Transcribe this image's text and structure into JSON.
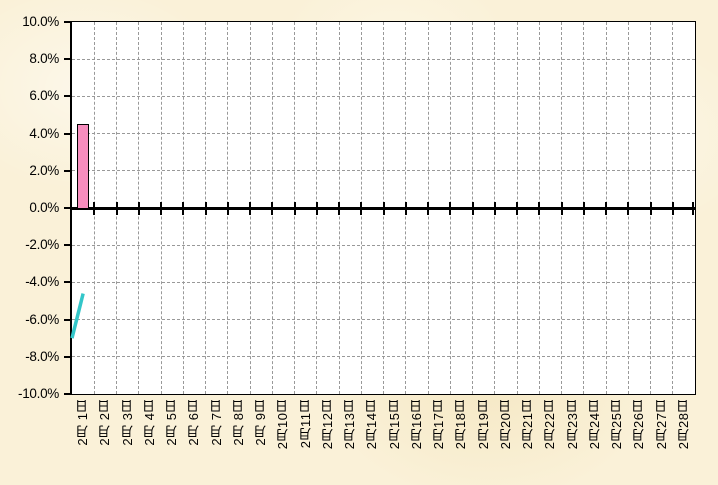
{
  "chart_data": {
    "type": "combo",
    "title": "",
    "legend": "none",
    "page_background": "#FAF1D8",
    "plot_background": "#FFFFFF",
    "axis_color": "#000000",
    "grid": {
      "horizontal": true,
      "vertical": true,
      "style": "dashed",
      "color": "#999999"
    },
    "y_axis": {
      "min": -10,
      "max": 10,
      "step": 2,
      "unit": "%",
      "tick_labels": [
        "10.0%",
        "8.0%",
        "6.0%",
        "4.0%",
        "2.0%",
        "0.0%",
        "-2.0%",
        "-4.0%",
        "-6.0%",
        "-8.0%",
        "-10.0%"
      ]
    },
    "x_axis": {
      "labels_rotated_deg": 90,
      "categories": [
        "2月 1日",
        "2月 2日",
        "2月 3日",
        "2月 4日",
        "2月 5日",
        "2月 6日",
        "2月 7日",
        "2月 8日",
        "2月 9日",
        "2月10日",
        "2月11日",
        "2月12日",
        "2月13日",
        "2月14日",
        "2月15日",
        "2月16日",
        "2月17日",
        "2月18日",
        "2月19日",
        "2月20日",
        "2月21日",
        "2月22日",
        "2月23日",
        "2月24日",
        "2月25日",
        "2月26日",
        "2月27日",
        "2月28日"
      ]
    },
    "series": [
      {
        "id": "pink-bar",
        "type": "bar",
        "fill": "#F78DBE",
        "stroke": "#000000",
        "points": [
          {
            "category": "2月 1日",
            "value": 4.5
          }
        ]
      },
      {
        "id": "teal-line",
        "type": "line",
        "stroke": "#33C6C9",
        "stroke_width": 3.5,
        "points": [
          {
            "category": "2月 1日",
            "value": -4.6
          }
        ],
        "entry_from": {
          "position": "left-axis",
          "value": -7.0
        }
      }
    ]
  }
}
